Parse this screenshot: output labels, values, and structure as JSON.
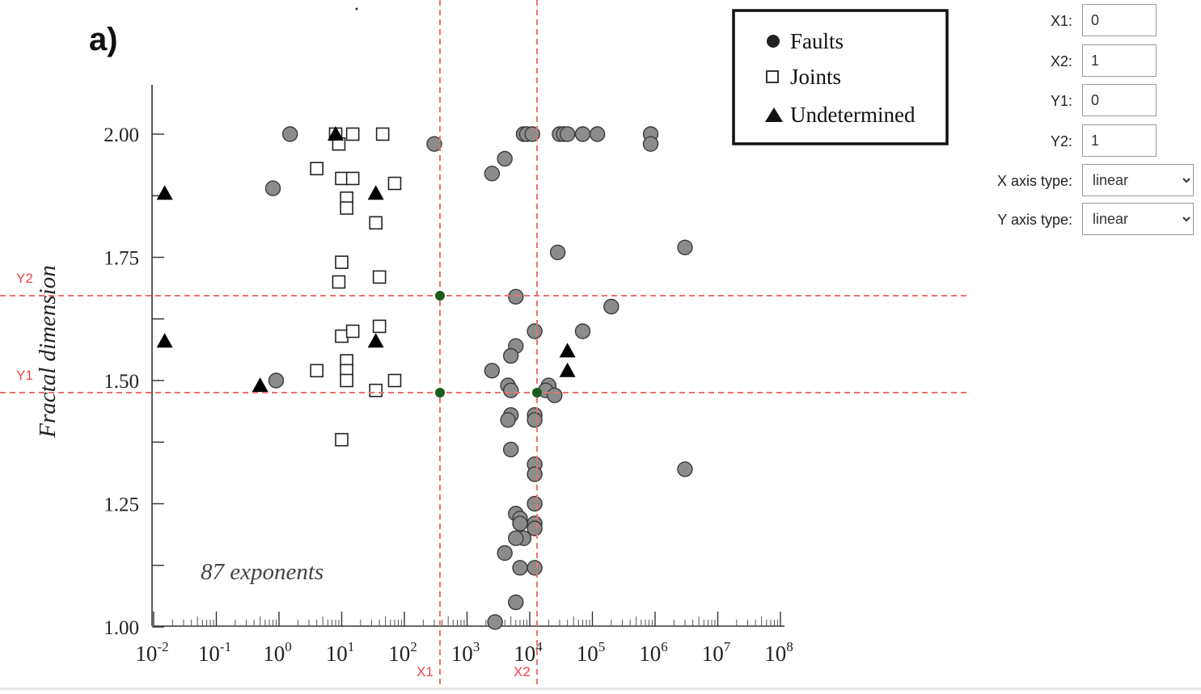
{
  "figure": {
    "panel_label": "a)",
    "annotation": "87 exponents"
  },
  "markers": {
    "x1": "X1",
    "x2": "X2",
    "y1": "Y1",
    "y2": "Y2",
    "line_color": "#f07070",
    "point_color": "#1a5c1a"
  },
  "controls": {
    "x1_label": "X1:",
    "x1_value": "0",
    "x2_label": "X2:",
    "x2_value": "1",
    "y1_label": "Y1:",
    "y1_value": "0",
    "y2_label": "Y2:",
    "y2_value": "1",
    "x_axis_type_label": "X axis type:",
    "x_axis_type_value": "linear",
    "y_axis_type_label": "Y axis type:",
    "y_axis_type_value": "linear"
  },
  "chart_data": {
    "type": "scatter",
    "title": "",
    "xlabel": "",
    "ylabel": "Fractal dimension",
    "xscale": "log",
    "xlim": [
      0.01,
      100000000
    ],
    "ylim": [
      1.0,
      2.1
    ],
    "x_tick_exponents": [
      -2,
      -1,
      0,
      1,
      2,
      3,
      4,
      5,
      6,
      7,
      8
    ],
    "y_ticks": [
      "1.00",
      "1.25",
      "1.50",
      "1.75",
      "2.00"
    ],
    "legend_position": "top-right",
    "series": [
      {
        "name": "Faults",
        "marker": "circle",
        "color": "#8c8c8c",
        "points": [
          [
            1.5,
            2.0
          ],
          [
            0.8,
            1.89
          ],
          [
            0.9,
            1.5
          ],
          [
            300,
            1.98
          ],
          [
            2500,
            1.92
          ],
          [
            4000,
            1.95
          ],
          [
            8000,
            2.0
          ],
          [
            9000,
            2.0
          ],
          [
            11000,
            2.0
          ],
          [
            30000,
            2.0
          ],
          [
            35000,
            2.0
          ],
          [
            40000,
            2.0
          ],
          [
            70000,
            2.0
          ],
          [
            120000,
            2.0
          ],
          [
            850000,
            2.0
          ],
          [
            850000,
            1.98
          ],
          [
            3000000,
            1.77
          ],
          [
            28000,
            1.76
          ],
          [
            6000,
            1.67
          ],
          [
            200000,
            1.65
          ],
          [
            12000,
            1.6
          ],
          [
            70000,
            1.6
          ],
          [
            6000,
            1.57
          ],
          [
            5000,
            1.55
          ],
          [
            2500,
            1.52
          ],
          [
            4500,
            1.49
          ],
          [
            5000,
            1.48
          ],
          [
            20000,
            1.49
          ],
          [
            18000,
            1.48
          ],
          [
            25000,
            1.47
          ],
          [
            5000,
            1.43
          ],
          [
            4500,
            1.42
          ],
          [
            12000,
            1.43
          ],
          [
            12000,
            1.42
          ],
          [
            5000,
            1.36
          ],
          [
            12000,
            1.33
          ],
          [
            12000,
            1.31
          ],
          [
            3000000,
            1.32
          ],
          [
            12000,
            1.25
          ],
          [
            6000,
            1.23
          ],
          [
            7000,
            1.22
          ],
          [
            7000,
            1.21
          ],
          [
            12000,
            1.21
          ],
          [
            12000,
            1.2
          ],
          [
            8000,
            1.18
          ],
          [
            6000,
            1.18
          ],
          [
            4000,
            1.15
          ],
          [
            7000,
            1.12
          ],
          [
            12000,
            1.12
          ],
          [
            6000,
            1.05
          ],
          [
            2800,
            1.01
          ]
        ]
      },
      {
        "name": "Joints",
        "marker": "square",
        "color": "#ffffff",
        "points": [
          [
            8,
            2.0
          ],
          [
            15,
            2.0
          ],
          [
            45,
            2.0
          ],
          [
            9,
            1.98
          ],
          [
            4,
            1.93
          ],
          [
            10,
            1.91
          ],
          [
            15,
            1.91
          ],
          [
            70,
            1.9
          ],
          [
            12,
            1.87
          ],
          [
            12,
            1.85
          ],
          [
            35,
            1.82
          ],
          [
            10,
            1.74
          ],
          [
            9,
            1.7
          ],
          [
            40,
            1.71
          ],
          [
            10,
            1.59
          ],
          [
            15,
            1.6
          ],
          [
            40,
            1.61
          ],
          [
            12,
            1.54
          ],
          [
            12,
            1.52
          ],
          [
            4,
            1.52
          ],
          [
            12,
            1.5
          ],
          [
            70,
            1.5
          ],
          [
            35,
            1.48
          ],
          [
            10,
            1.38
          ]
        ]
      },
      {
        "name": "Undetermined",
        "marker": "triangle",
        "color": "#000000",
        "points": [
          [
            0.015,
            1.88
          ],
          [
            8,
            2.0
          ],
          [
            35,
            1.88
          ],
          [
            0.015,
            1.58
          ],
          [
            35,
            1.58
          ],
          [
            0.5,
            1.49
          ],
          [
            40000,
            1.56
          ],
          [
            40000,
            1.52
          ]
        ]
      }
    ]
  }
}
